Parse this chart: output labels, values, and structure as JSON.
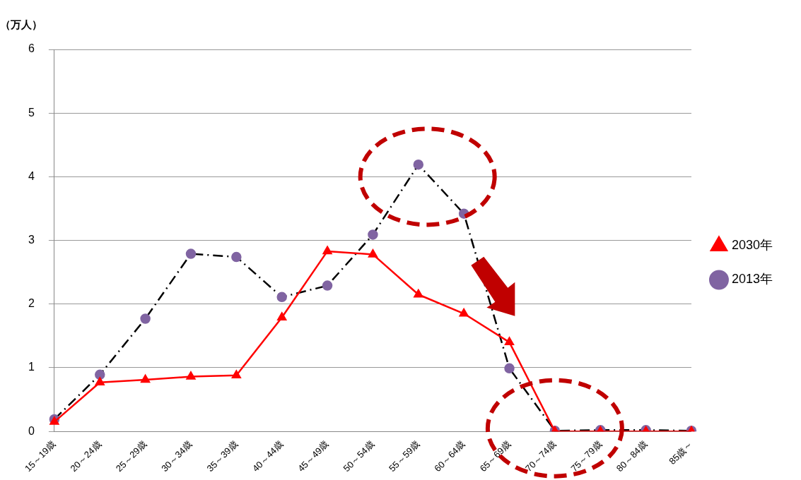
{
  "chart_data": {
    "type": "line",
    "ylabel": "（万人）",
    "categories": [
      "15～19歳",
      "20～24歳",
      "25～29歳",
      "30～34歳",
      "35～39歳",
      "40～44歳",
      "45～49歳",
      "50～54歳",
      "55～59歳",
      "60～64歳",
      "65～69歳",
      "70～74歳",
      "75～79歳",
      "80～84歳",
      "85歳～"
    ],
    "series": [
      {
        "name": "2013年",
        "color": "#000000",
        "colors": [
          "#8064a2",
          "#8064a2",
          "#8064a2",
          "#8064a2",
          "#8064a2",
          "#8064a2",
          "#8064a2",
          "#8064a2",
          "#8064a2",
          "#8064a2",
          "#8064a2",
          "#8064a2",
          "#8064a2",
          "#8064a2",
          "#8064a2"
        ],
        "marker": "circle",
        "line_style": "dashdot",
        "values": [
          0.19,
          0.89,
          1.77,
          2.79,
          2.74,
          2.11,
          2.29,
          3.09,
          4.19,
          3.42,
          0.99,
          0.01,
          0.02,
          0.02,
          0.01
        ]
      },
      {
        "name": "2030年",
        "color": "#ff0000",
        "marker": "triangle",
        "line_style": "solid",
        "values": [
          0.15,
          0.77,
          0.81,
          0.86,
          0.88,
          1.79,
          2.83,
          2.78,
          2.15,
          1.85,
          1.4,
          0,
          0,
          0,
          0
        ]
      }
    ],
    "ylim": [
      0,
      6
    ],
    "yticks": [
      0,
      1,
      2,
      3,
      4,
      5,
      6
    ],
    "grid": "y",
    "legend": "right"
  }
}
